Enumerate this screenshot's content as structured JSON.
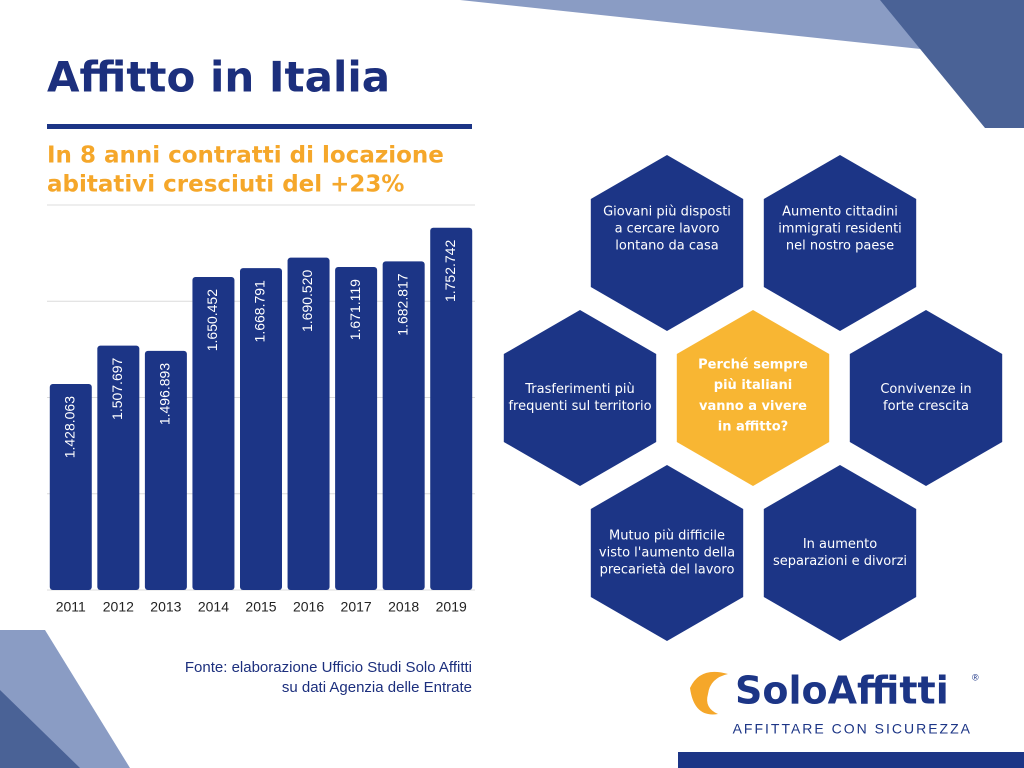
{
  "title": "Affitto in Italia",
  "subtitle": [
    "In 8 anni contratti di locazione",
    "abitativi cresciuti del +23%"
  ],
  "chart_data": {
    "type": "bar",
    "categories": [
      "2011",
      "2012",
      "2013",
      "2014",
      "2015",
      "2016",
      "2017",
      "2018",
      "2019"
    ],
    "values": [
      1428063,
      1507697,
      1496893,
      1650452,
      1668791,
      1690520,
      1671119,
      1682817,
      1752742
    ],
    "value_labels": [
      "1.428.063",
      "1.507.697",
      "1.496.893",
      "1.650.452",
      "1.668.791",
      "1.690.520",
      "1.671.119",
      "1.682.817",
      "1.752.742"
    ],
    "color": "#1c3586",
    "ylim": [
      1000000,
      1800000
    ],
    "yticks": [
      1000000,
      1200000,
      1400000,
      1600000,
      1800000
    ],
    "grid": true
  },
  "source": [
    "Fonte: elaborazione Ufficio Studi Solo Affitti",
    "su dati Agenzia delle Entrate"
  ],
  "center_question": [
    "Perché sempre",
    "più italiani",
    "vanno a vivere",
    "in affitto?"
  ],
  "hexagons": [
    [
      "Giovani più disposti",
      "a cercare lavoro",
      "lontano da casa"
    ],
    [
      "Aumento cittadini",
      "immigrati residenti",
      "nel nostro paese"
    ],
    [
      "Trasferimenti più",
      "frequenti sul territorio"
    ],
    [
      "Convivenze in",
      "forte crescita"
    ],
    [
      "Mutuo più difficile",
      "visto l'aumento della",
      "precarietà del lavoro"
    ],
    [
      "In aumento",
      "separazioni e divorzi"
    ]
  ],
  "logo": {
    "name": "SoloAffitti",
    "mark": "®",
    "tagline": "AFFITTARE CON SICUREZZA"
  }
}
